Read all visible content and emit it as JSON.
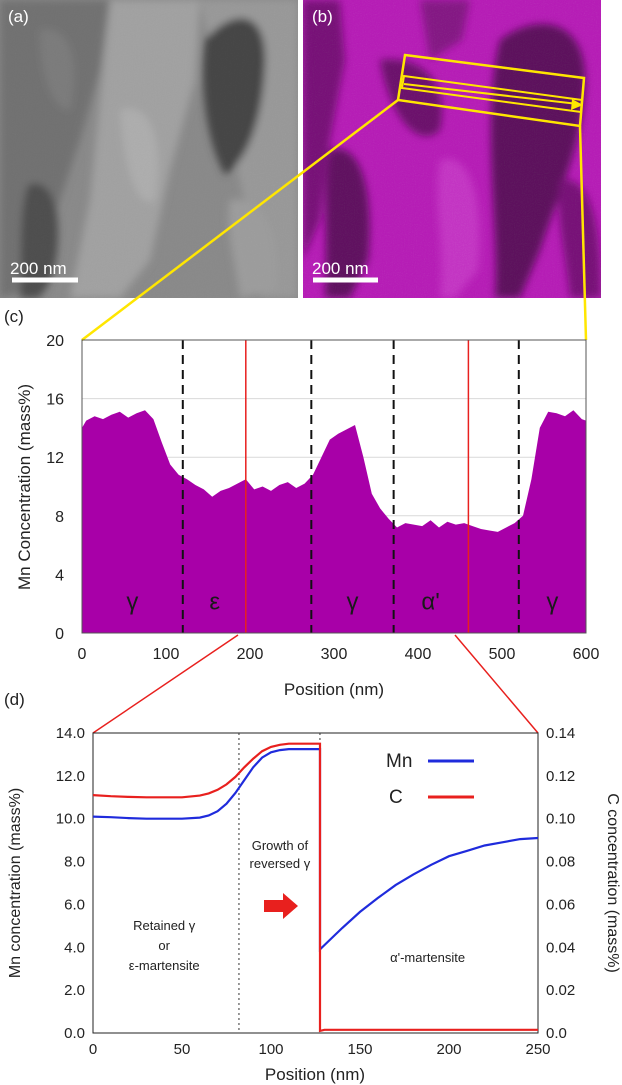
{
  "panels": {
    "a": {
      "label": "(a)",
      "scalebar": "200 nm"
    },
    "b": {
      "label": "(b)",
      "scalebar": "200 nm"
    },
    "c": {
      "label": "(c)"
    },
    "d": {
      "label": "(d)"
    }
  },
  "colors": {
    "mn_fill": "#a800a8",
    "mn_line": "#1f2bdc",
    "c_line": "#e8201e",
    "connector_yellow": "#ffe600",
    "connector_red": "#e8201e",
    "eds_magenta": "#c020c0"
  },
  "chart_data": [
    {
      "type": "area",
      "panel": "c",
      "xlabel": "Position (nm)",
      "ylabel": "Mn Concentration (mass%)",
      "xlim": [
        0,
        600
      ],
      "ylim": [
        0,
        20
      ],
      "xticks": [
        "0",
        "100",
        "200",
        "300",
        "400",
        "500",
        "600"
      ],
      "yticks": [
        "0",
        "4",
        "8",
        "12",
        "16",
        "20"
      ],
      "grid": true,
      "series": [
        {
          "x": [
            0,
            5,
            15,
            25,
            35,
            45,
            55,
            65,
            75,
            85,
            95,
            105,
            115,
            125,
            135,
            145,
            155,
            165,
            175,
            185,
            195,
            205,
            215,
            225,
            235,
            245,
            255,
            265,
            275,
            285,
            295,
            305,
            315,
            325,
            335,
            345,
            355,
            365,
            375,
            385,
            395,
            405,
            415,
            425,
            435,
            445,
            455,
            465,
            475,
            485,
            495,
            505,
            515,
            525,
            535,
            545,
            555,
            565,
            575,
            585,
            595,
            600
          ],
          "values": [
            14.0,
            14.5,
            14.8,
            14.6,
            14.9,
            15.1,
            14.7,
            15.0,
            15.2,
            14.6,
            13.0,
            11.5,
            10.8,
            10.5,
            10.1,
            9.8,
            9.3,
            9.7,
            9.9,
            10.2,
            10.5,
            9.8,
            10.0,
            9.7,
            10.1,
            10.3,
            9.9,
            10.2,
            10.8,
            12.0,
            13.2,
            13.6,
            13.9,
            14.2,
            12.0,
            9.5,
            8.5,
            7.8,
            7.2,
            7.5,
            7.4,
            7.3,
            7.7,
            7.2,
            7.6,
            7.4,
            7.5,
            7.3,
            7.1,
            7.0,
            6.9,
            7.2,
            7.5,
            8.0,
            10.5,
            14.0,
            15.1,
            15.0,
            14.8,
            15.2,
            14.6,
            14.5
          ]
        }
      ],
      "boundaries_black": [
        120,
        273,
        371,
        520
      ],
      "boundaries_red": [
        195,
        460
      ],
      "phase_labels": [
        {
          "x": 60,
          "text": "γ"
        },
        {
          "x": 158,
          "text": "ε"
        },
        {
          "x": 322,
          "text": "γ"
        },
        {
          "x": 415,
          "text": "α'"
        },
        {
          "x": 560,
          "text": "γ"
        }
      ]
    },
    {
      "type": "line",
      "panel": "d",
      "xlabel": "Position (nm)",
      "ylabel": "Mn concentration (mass%)",
      "y2label": "C concentration (mass%)",
      "xlim": [
        0,
        250
      ],
      "ylim": [
        0,
        14
      ],
      "y2lim": [
        0,
        0.14
      ],
      "xticks": [
        "0",
        "50",
        "100",
        "150",
        "200",
        "250"
      ],
      "yticks": [
        "0.0",
        "2.0",
        "4.0",
        "6.0",
        "8.0",
        "10.0",
        "12.0",
        "14.0"
      ],
      "y2ticks": [
        "0.0",
        "0.02",
        "0.04",
        "0.06",
        "0.08",
        "0.10",
        "0.12",
        "0.14"
      ],
      "legend_position": "top-right",
      "series": [
        {
          "name": "Mn",
          "axis": "left",
          "x": [
            0,
            10,
            20,
            30,
            40,
            50,
            60,
            65,
            70,
            75,
            80,
            85,
            90,
            95,
            100,
            105,
            110,
            115,
            120,
            125,
            127.5,
            127.5,
            130,
            140,
            150,
            160,
            170,
            180,
            190,
            200,
            210,
            220,
            230,
            240,
            250
          ],
          "values": [
            10.1,
            10.07,
            10.03,
            10.0,
            10.0,
            10.0,
            10.05,
            10.15,
            10.35,
            10.7,
            11.2,
            11.8,
            12.4,
            12.85,
            13.1,
            13.2,
            13.25,
            13.25,
            13.25,
            13.25,
            13.25,
            3.9,
            4.1,
            4.9,
            5.65,
            6.3,
            6.9,
            7.4,
            7.85,
            8.25,
            8.5,
            8.75,
            8.9,
            9.05,
            9.1
          ]
        },
        {
          "name": "C",
          "axis": "right",
          "x": [
            0,
            10,
            20,
            30,
            40,
            50,
            60,
            65,
            70,
            75,
            80,
            85,
            90,
            95,
            100,
            105,
            110,
            115,
            120,
            125,
            127.5,
            127.5,
            130,
            150,
            200,
            250
          ],
          "values": [
            0.111,
            0.1105,
            0.1102,
            0.11,
            0.11,
            0.11,
            0.1108,
            0.1118,
            0.1135,
            0.116,
            0.1195,
            0.124,
            0.128,
            0.1315,
            0.1335,
            0.1345,
            0.135,
            0.135,
            0.135,
            0.135,
            0.135,
            0.001,
            0.0015,
            0.0015,
            0.0015,
            0.0015
          ]
        }
      ],
      "dotted_boundaries": [
        82,
        127.5
      ],
      "annotations": [
        {
          "x": 40,
          "lines": [
            "Retained γ",
            "or",
            "ε-martensite"
          ]
        },
        {
          "x": 105,
          "lines": [
            "Growth of",
            "reversed γ"
          ]
        },
        {
          "x": 188,
          "lines": [
            "α'-martensite"
          ]
        }
      ]
    }
  ]
}
